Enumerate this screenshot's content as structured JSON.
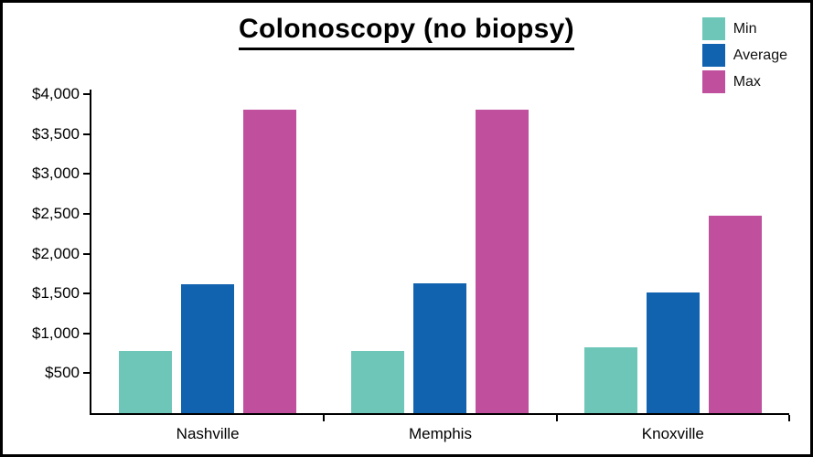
{
  "title": "Colonoscopy (no biopsy)",
  "chart_data": {
    "type": "bar",
    "title": "Colonoscopy (no biopsy)",
    "categories": [
      "Nashville",
      "Memphis",
      "Knoxville"
    ],
    "series": [
      {
        "name": "Min",
        "color": "#6ec6b8",
        "values": [
          780,
          780,
          830
        ]
      },
      {
        "name": "Average",
        "color": "#1162af",
        "values": [
          1620,
          1630,
          1510
        ]
      },
      {
        "name": "Max",
        "color": "#c04f9e",
        "values": [
          3800,
          3800,
          2480
        ]
      }
    ],
    "xlabel": "",
    "ylabel": "",
    "ylim": [
      0,
      4000
    ],
    "y_ticks": [
      {
        "value": 4000,
        "label": "$4,000"
      },
      {
        "value": 3500,
        "label": "$3,500"
      },
      {
        "value": 3000,
        "label": "$3,000"
      },
      {
        "value": 2500,
        "label": "$2,500"
      },
      {
        "value": 2000,
        "label": "$2,000"
      },
      {
        "value": 1500,
        "label": "$1,500"
      },
      {
        "value": 1000,
        "label": "$1,000"
      },
      {
        "value": 500,
        "label": "$500"
      }
    ],
    "grid": false,
    "legend_position": "top-right",
    "legend": [
      "Min",
      "Average",
      "Max"
    ]
  }
}
